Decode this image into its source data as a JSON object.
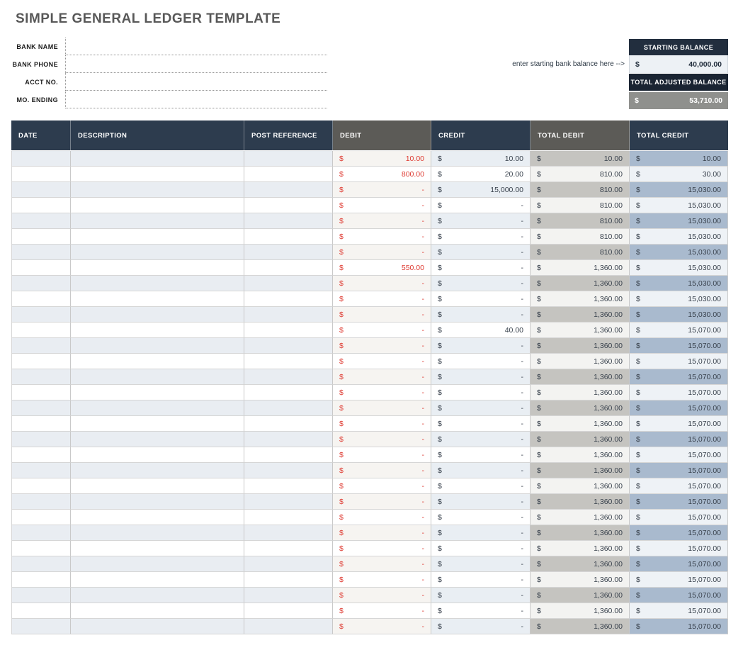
{
  "page": {
    "title": "SIMPLE GENERAL LEDGER TEMPLATE"
  },
  "form": {
    "fields": [
      {
        "label": "BANK NAME",
        "value": ""
      },
      {
        "label": "BANK PHONE",
        "value": ""
      },
      {
        "label": "ACCT NO.",
        "value": ""
      },
      {
        "label": "MO. ENDING",
        "value": ""
      }
    ]
  },
  "balance": {
    "annotation": "enter starting bank balance here -->",
    "starting_label": "STARTING BALANCE",
    "starting_currency": "$",
    "starting_value": "40,000.00",
    "adjusted_label": "TOTAL ADJUSTED BALANCE",
    "adjusted_currency": "$",
    "adjusted_value": "53,710.00"
  },
  "colors": {
    "navy_header": "#2d3c4e",
    "gray_header": "#5c5b57",
    "debit_text_red": "#de3a31",
    "starting_header_bg": "#222e3e",
    "adjusted_header_bg": "#1a2432",
    "adjusted_value_bg": "#8f908d",
    "total_debit_stripe": "#c5c4c0",
    "total_credit_stripe": "#a9bace"
  },
  "table": {
    "currency": "$",
    "columns": [
      "DATE",
      "DESCRIPTION",
      "POST REFERENCE",
      "DEBIT",
      "CREDIT",
      "TOTAL DEBIT",
      "TOTAL CREDIT"
    ],
    "rows": [
      {
        "date": "",
        "description": "",
        "post_reference": "",
        "debit": "10.00",
        "credit": "10.00",
        "total_debit": "10.00",
        "total_credit": "10.00"
      },
      {
        "date": "",
        "description": "",
        "post_reference": "",
        "debit": "800.00",
        "credit": "20.00",
        "total_debit": "810.00",
        "total_credit": "30.00"
      },
      {
        "date": "",
        "description": "",
        "post_reference": "",
        "debit": "-",
        "credit": "15,000.00",
        "total_debit": "810.00",
        "total_credit": "15,030.00"
      },
      {
        "date": "",
        "description": "",
        "post_reference": "",
        "debit": "-",
        "credit": "-",
        "total_debit": "810.00",
        "total_credit": "15,030.00"
      },
      {
        "date": "",
        "description": "",
        "post_reference": "",
        "debit": "-",
        "credit": "-",
        "total_debit": "810.00",
        "total_credit": "15,030.00"
      },
      {
        "date": "",
        "description": "",
        "post_reference": "",
        "debit": "-",
        "credit": "-",
        "total_debit": "810.00",
        "total_credit": "15,030.00"
      },
      {
        "date": "",
        "description": "",
        "post_reference": "",
        "debit": "-",
        "credit": "-",
        "total_debit": "810.00",
        "total_credit": "15,030.00"
      },
      {
        "date": "",
        "description": "",
        "post_reference": "",
        "debit": "550.00",
        "credit": "-",
        "total_debit": "1,360.00",
        "total_credit": "15,030.00"
      },
      {
        "date": "",
        "description": "",
        "post_reference": "",
        "debit": "-",
        "credit": "-",
        "total_debit": "1,360.00",
        "total_credit": "15,030.00"
      },
      {
        "date": "",
        "description": "",
        "post_reference": "",
        "debit": "-",
        "credit": "-",
        "total_debit": "1,360.00",
        "total_credit": "15,030.00"
      },
      {
        "date": "",
        "description": "",
        "post_reference": "",
        "debit": "-",
        "credit": "-",
        "total_debit": "1,360.00",
        "total_credit": "15,030.00"
      },
      {
        "date": "",
        "description": "",
        "post_reference": "",
        "debit": "-",
        "credit": "40.00",
        "total_debit": "1,360.00",
        "total_credit": "15,070.00"
      },
      {
        "date": "",
        "description": "",
        "post_reference": "",
        "debit": "-",
        "credit": "-",
        "total_debit": "1,360.00",
        "total_credit": "15,070.00"
      },
      {
        "date": "",
        "description": "",
        "post_reference": "",
        "debit": "-",
        "credit": "-",
        "total_debit": "1,360.00",
        "total_credit": "15,070.00"
      },
      {
        "date": "",
        "description": "",
        "post_reference": "",
        "debit": "-",
        "credit": "-",
        "total_debit": "1,360.00",
        "total_credit": "15,070.00"
      },
      {
        "date": "",
        "description": "",
        "post_reference": "",
        "debit": "-",
        "credit": "-",
        "total_debit": "1,360.00",
        "total_credit": "15,070.00"
      },
      {
        "date": "",
        "description": "",
        "post_reference": "",
        "debit": "-",
        "credit": "-",
        "total_debit": "1,360.00",
        "total_credit": "15,070.00"
      },
      {
        "date": "",
        "description": "",
        "post_reference": "",
        "debit": "-",
        "credit": "-",
        "total_debit": "1,360.00",
        "total_credit": "15,070.00"
      },
      {
        "date": "",
        "description": "",
        "post_reference": "",
        "debit": "-",
        "credit": "-",
        "total_debit": "1,360.00",
        "total_credit": "15,070.00"
      },
      {
        "date": "",
        "description": "",
        "post_reference": "",
        "debit": "-",
        "credit": "-",
        "total_debit": "1,360.00",
        "total_credit": "15,070.00"
      },
      {
        "date": "",
        "description": "",
        "post_reference": "",
        "debit": "-",
        "credit": "-",
        "total_debit": "1,360.00",
        "total_credit": "15,070.00"
      },
      {
        "date": "",
        "description": "",
        "post_reference": "",
        "debit": "-",
        "credit": "-",
        "total_debit": "1,360.00",
        "total_credit": "15,070.00"
      },
      {
        "date": "",
        "description": "",
        "post_reference": "",
        "debit": "-",
        "credit": "-",
        "total_debit": "1,360.00",
        "total_credit": "15,070.00"
      },
      {
        "date": "",
        "description": "",
        "post_reference": "",
        "debit": "-",
        "credit": "-",
        "total_debit": "1,360.00",
        "total_credit": "15,070.00"
      },
      {
        "date": "",
        "description": "",
        "post_reference": "",
        "debit": "-",
        "credit": "-",
        "total_debit": "1,360.00",
        "total_credit": "15,070.00"
      },
      {
        "date": "",
        "description": "",
        "post_reference": "",
        "debit": "-",
        "credit": "-",
        "total_debit": "1,360.00",
        "total_credit": "15,070.00"
      },
      {
        "date": "",
        "description": "",
        "post_reference": "",
        "debit": "-",
        "credit": "-",
        "total_debit": "1,360.00",
        "total_credit": "15,070.00"
      },
      {
        "date": "",
        "description": "",
        "post_reference": "",
        "debit": "-",
        "credit": "-",
        "total_debit": "1,360.00",
        "total_credit": "15,070.00"
      },
      {
        "date": "",
        "description": "",
        "post_reference": "",
        "debit": "-",
        "credit": "-",
        "total_debit": "1,360.00",
        "total_credit": "15,070.00"
      },
      {
        "date": "",
        "description": "",
        "post_reference": "",
        "debit": "-",
        "credit": "-",
        "total_debit": "1,360.00",
        "total_credit": "15,070.00"
      },
      {
        "date": "",
        "description": "",
        "post_reference": "",
        "debit": "-",
        "credit": "-",
        "total_debit": "1,360.00",
        "total_credit": "15,070.00"
      }
    ]
  }
}
